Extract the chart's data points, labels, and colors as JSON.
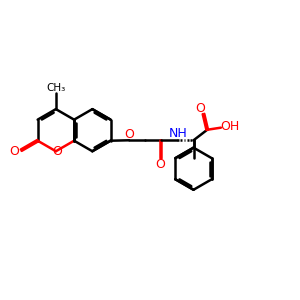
{
  "bg_color": "#ffffff",
  "bond_color": "#000000",
  "oxygen_color": "#ff0000",
  "nitrogen_color": "#0000ff",
  "lw": 1.8,
  "fig_width": 3.0,
  "fig_height": 3.0,
  "dpi": 100,
  "xlim": [
    0,
    12
  ],
  "ylim": [
    0,
    10
  ]
}
